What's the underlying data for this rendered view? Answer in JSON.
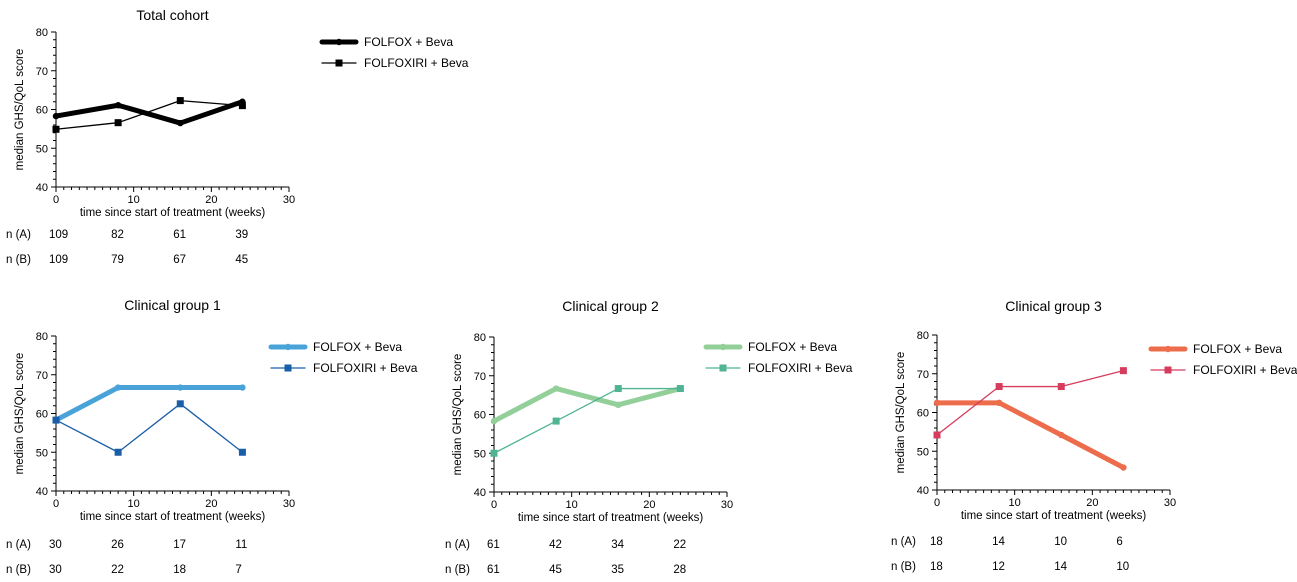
{
  "chart_data": [
    {
      "type": "line",
      "title": "Total cohort",
      "xlabel": "time since start of treatment (weeks)",
      "ylabel": "median GHS/QoL score",
      "xlim": [
        0,
        30
      ],
      "ylim": [
        40,
        80
      ],
      "xticks": [
        "0",
        "10",
        "20",
        "30"
      ],
      "yticks": [
        "40",
        "50",
        "60",
        "70",
        "80"
      ],
      "x": [
        0,
        8,
        16,
        24
      ],
      "series": [
        {
          "name": "FOLFOX + Beva",
          "values": [
            58.3,
            61.1,
            56.5,
            62.0
          ],
          "color": "#000000",
          "marker": "circle",
          "thick": true
        },
        {
          "name": "FOLFOXIRI + Beva",
          "values": [
            54.9,
            56.6,
            62.3,
            61.0
          ],
          "color": "#000000",
          "marker": "square",
          "thick": false
        }
      ],
      "counts": [
        {
          "label": "n (A)",
          "values": [
            "109",
            "82",
            "61",
            "39"
          ]
        },
        {
          "label": "n (B)",
          "values": [
            "109",
            "79",
            "67",
            "45"
          ]
        }
      ]
    },
    {
      "type": "line",
      "title": "Clinical group 1",
      "xlabel": "time since start of treatment (weeks)",
      "ylabel": "median GHS/QoL score",
      "xlim": [
        0,
        30
      ],
      "ylim": [
        40,
        80
      ],
      "xticks": [
        "0",
        "10",
        "20",
        "30"
      ],
      "yticks": [
        "40",
        "50",
        "60",
        "70",
        "80"
      ],
      "x": [
        0,
        8,
        16,
        24
      ],
      "series": [
        {
          "name": "FOLFOX + Beva",
          "values": [
            58.3,
            66.7,
            66.7,
            66.7
          ],
          "color": "#4aa3d8",
          "marker": "circle",
          "thick": true
        },
        {
          "name": "FOLFOXIRI + Beva",
          "values": [
            58.3,
            50.0,
            62.5,
            50.0
          ],
          "color": "#1a5ea8",
          "marker": "square",
          "thick": false
        }
      ],
      "counts": [
        {
          "label": "n (A)",
          "values": [
            "30",
            "26",
            "17",
            "11"
          ]
        },
        {
          "label": "n (B)",
          "values": [
            "30",
            "22",
            "18",
            "7"
          ]
        }
      ]
    },
    {
      "type": "line",
      "title": "Clinical group 2",
      "xlabel": "time since start of treatment (weeks)",
      "ylabel": "median GHS/QoL score",
      "xlim": [
        0,
        30
      ],
      "ylim": [
        40,
        80
      ],
      "xticks": [
        "0",
        "10",
        "20",
        "30"
      ],
      "yticks": [
        "40",
        "50",
        "60",
        "70",
        "80"
      ],
      "x": [
        0,
        8,
        16,
        24
      ],
      "series": [
        {
          "name": "FOLFOX + Beva",
          "values": [
            58.3,
            66.7,
            62.5,
            66.7
          ],
          "color": "#93cf98",
          "marker": "circle",
          "thick": true
        },
        {
          "name": "FOLFOXIRI + Beva",
          "values": [
            50.0,
            58.3,
            66.7,
            66.7
          ],
          "color": "#4fb394",
          "marker": "square",
          "thick": false
        }
      ],
      "counts": [
        {
          "label": "n (A)",
          "values": [
            "61",
            "42",
            "34",
            "22"
          ]
        },
        {
          "label": "n (B)",
          "values": [
            "61",
            "45",
            "35",
            "28"
          ]
        }
      ]
    },
    {
      "type": "line",
      "title": "Clinical group 3",
      "xlabel": "time since start of treatment (weeks)",
      "ylabel": "median GHS/QoL score",
      "xlim": [
        0,
        30
      ],
      "ylim": [
        40,
        80
      ],
      "xticks": [
        "0",
        "10",
        "20",
        "30"
      ],
      "yticks": [
        "40",
        "50",
        "60",
        "70",
        "80"
      ],
      "x": [
        0,
        8,
        16,
        24
      ],
      "series": [
        {
          "name": "FOLFOX + Beva",
          "values": [
            62.5,
            62.5,
            54.2,
            45.8
          ],
          "color": "#ec6c4c",
          "marker": "circle",
          "thick": true
        },
        {
          "name": "FOLFOXIRI + Beva",
          "values": [
            54.2,
            66.7,
            66.7,
            70.8
          ],
          "color": "#d63c5c",
          "marker": "square",
          "thick": false
        }
      ],
      "counts": [
        {
          "label": "n (A)",
          "values": [
            "18",
            "14",
            "10",
            "6"
          ]
        },
        {
          "label": "n (B)",
          "values": [
            "18",
            "12",
            "14",
            "10"
          ]
        }
      ]
    }
  ]
}
